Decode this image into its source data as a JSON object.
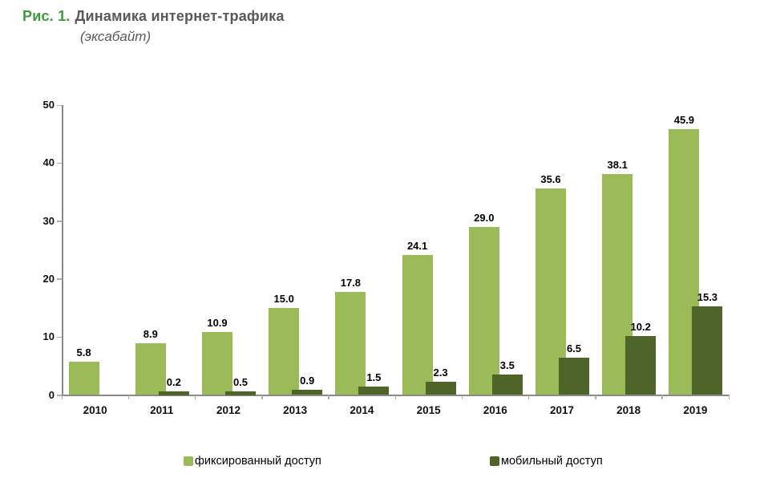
{
  "figure": {
    "label": "Рис. 1.",
    "title": "Динамика интернет-трафика",
    "unit": "(эксабайт)"
  },
  "colors": {
    "fixed": "#9BBB59",
    "mobile": "#4F6428",
    "figure_label_green": "#3C9B3C",
    "title_gray": "#595959",
    "axis_line": "#8a8a8a"
  },
  "chart_data": {
    "type": "bar",
    "title": "Динамика интернет-трафика (эксабайт)",
    "xlabel": "",
    "ylabel": "эксабайт",
    "categories": [
      "2010",
      "2011",
      "2012",
      "2013",
      "2014",
      "2015",
      "2016",
      "2017",
      "2018",
      "2019"
    ],
    "series": [
      {
        "key": "fixed",
        "name": "фиксированный доступ",
        "color_key": "fixed",
        "values": [
          5.8,
          8.9,
          10.9,
          15.0,
          17.8,
          24.1,
          29.0,
          35.6,
          38.1,
          45.9
        ]
      },
      {
        "key": "mobile",
        "name": "мобильный доступ",
        "color_key": "mobile",
        "values": [
          null,
          0.2,
          0.5,
          0.9,
          1.5,
          2.3,
          3.5,
          6.5,
          10.2,
          15.3
        ]
      }
    ],
    "ylim": [
      0,
      50
    ],
    "yticks": [
      0,
      10,
      20,
      30,
      40,
      50
    ],
    "grid": false,
    "data_labels": true,
    "label_format": "one_decimal",
    "legend_position": "bottom"
  }
}
